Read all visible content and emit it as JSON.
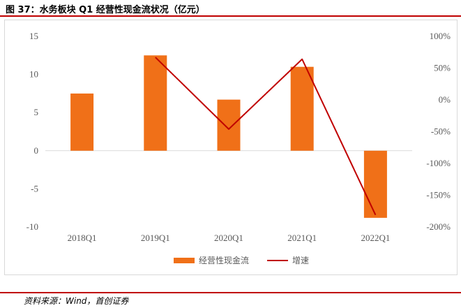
{
  "figure": {
    "title": "图 37：水务板块 Q1 经营性现金流状况（亿元）",
    "source": "资料来源：Wind，首创证券"
  },
  "colors": {
    "bar": "#f07018",
    "line": "#c00000",
    "rule": "#c00000",
    "tick": "#595959"
  },
  "chart_data": {
    "type": "bar",
    "categories": [
      "2018Q1",
      "2019Q1",
      "2020Q1",
      "2021Q1",
      "2022Q1"
    ],
    "series": [
      {
        "name": "经营性现金流",
        "type": "bar",
        "axis": "left",
        "values": [
          7.5,
          12.5,
          6.7,
          11.0,
          -8.8
        ]
      },
      {
        "name": "增速",
        "type": "line",
        "axis": "right",
        "unit": "%",
        "values": [
          null,
          67,
          -46,
          64,
          -181
        ]
      }
    ],
    "ylim": [
      -10,
      15
    ],
    "yticks": [
      -10,
      -5,
      0,
      5,
      10,
      15
    ],
    "y2lim": [
      -200,
      100
    ],
    "y2ticks": [
      -200,
      -150,
      -100,
      -50,
      0,
      50,
      100
    ],
    "y2tick_labels": [
      "-200%",
      "-150%",
      "-100%",
      "-50%",
      "0%",
      "50%",
      "100%"
    ],
    "grid": false,
    "legend": "bottom"
  }
}
